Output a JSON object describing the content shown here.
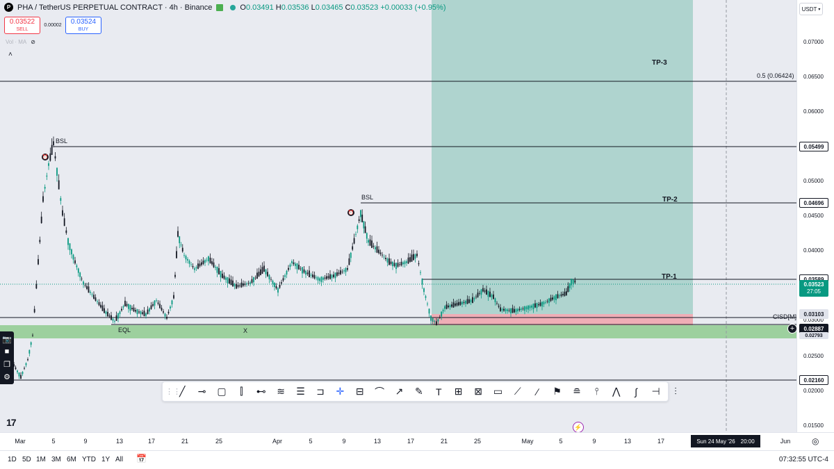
{
  "header": {
    "symbol": "PHA / TetherUS PERPETUAL CONTRACT · 4h · Binance",
    "open_label": "O",
    "open": "0.03491",
    "high_label": "H",
    "high": "0.03536",
    "low_label": "L",
    "low": "0.03465",
    "close_label": "C",
    "close": "0.03523",
    "change": "+0.00033 (+0.95%)"
  },
  "trade": {
    "sell_price": "0.03522",
    "sell_label": "SELL",
    "spread": "0.00002",
    "buy_price": "0.03524",
    "buy_label": "BUY"
  },
  "indicators": {
    "vol_label": "Vol · MA"
  },
  "currency": "USDT",
  "price_axis": {
    "ticks": [
      "0.07000",
      "0.06500",
      "0.06000",
      "0.05500",
      "0.05000",
      "0.04500",
      "0.04000",
      "0.03500",
      "0.03000",
      "0.02500",
      "0.02000",
      "0.01500"
    ],
    "labels": {
      "bsl_high": "0.05499",
      "bsl_mid": "0.04696",
      "tp1": "0.03589",
      "current": "0.03523",
      "countdown": "27:05",
      "cisd": "0.03103",
      "line": "0.02887",
      "zone_low": "0.02793",
      "low": "0.02160"
    }
  },
  "annotations": {
    "tp3": "TP-3",
    "tp2": "TP-2",
    "tp1": "TP-1",
    "fib": "0.5 (0.06424)",
    "bsl1": "BSL",
    "bsl2": "BSL",
    "eql": "EQL",
    "x": "X",
    "cisd": "CISD[M]"
  },
  "time_axis": {
    "ticks": [
      "Mar",
      "5",
      "9",
      "13",
      "17",
      "21",
      "25",
      "Apr",
      "5",
      "9",
      "13",
      "17",
      "21",
      "25",
      "May",
      "5",
      "9",
      "13",
      "17",
      "Jun"
    ],
    "crosshair_date": "Sun 24 May '26",
    "crosshair_time": "20:00"
  },
  "bottom_bar": {
    "ranges": [
      "1D",
      "5D",
      "1M",
      "3M",
      "6M",
      "YTD",
      "1Y",
      "All"
    ],
    "clock": "07:32:55 UTC-4"
  },
  "drawing_tools": [
    "trend-line",
    "horizontal-ray",
    "rectangle",
    "long-position",
    "horizontal-line",
    "fib-retracement",
    "fib-extension",
    "callout",
    "cross",
    "parallel-channel",
    "arc",
    "arrow",
    "brush",
    "text",
    "price-label",
    "date-range",
    "comment",
    "path",
    "pencil",
    "flag",
    "regression",
    "pitchfork",
    "polyline",
    "curve",
    "measure",
    "vertical-line"
  ],
  "icon_names": [
    "camera-icon",
    "video-icon",
    "copy-icon",
    "settings-icon",
    "calendar-icon",
    "bolt-icon",
    "plus-icon",
    "alarm-icon"
  ]
}
